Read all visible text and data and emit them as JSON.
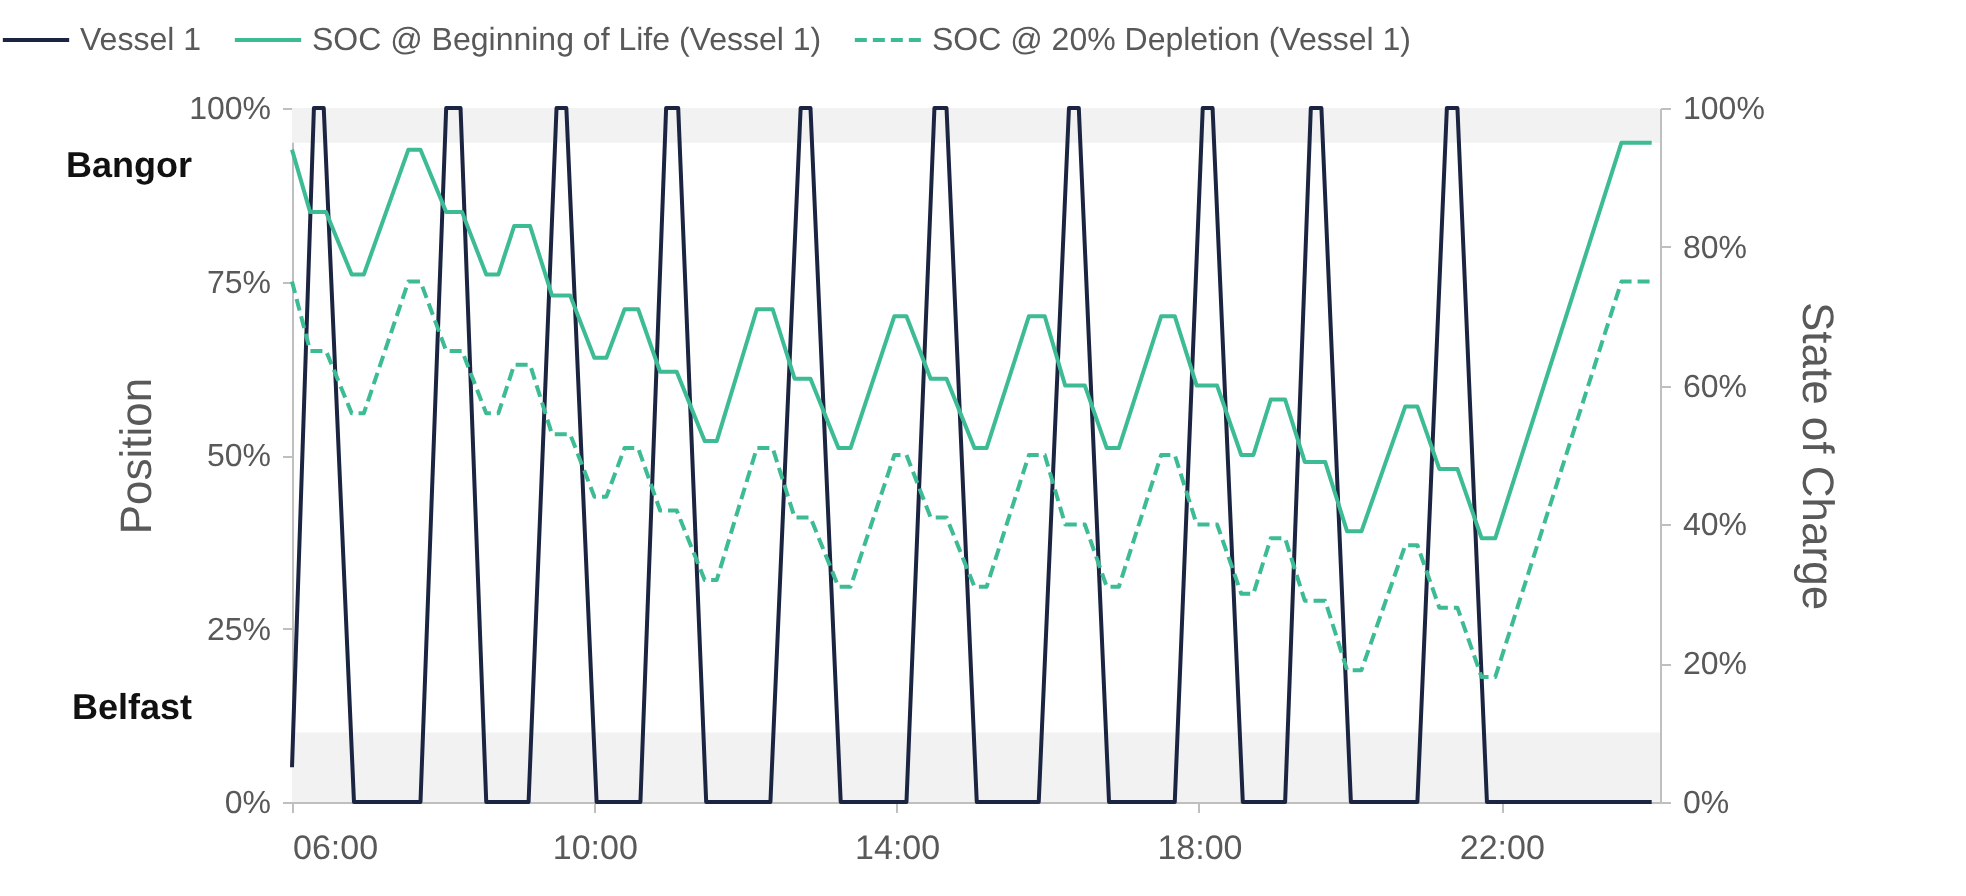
{
  "chart_data": {
    "type": "line",
    "xlabel": null,
    "ylabel": "Position",
    "y2label": "State of Charge",
    "xlim": [
      6,
      24.1
    ],
    "xticks": [
      {
        "value": 6,
        "label": "06:00"
      },
      {
        "value": 10,
        "label": "10:00"
      },
      {
        "value": 14,
        "label": "14:00"
      },
      {
        "value": 18,
        "label": "18:00"
      },
      {
        "value": 22,
        "label": "22:00"
      }
    ],
    "ylim": [
      0,
      100
    ],
    "yticks": [
      {
        "value": 0,
        "label": "0%"
      },
      {
        "value": 25,
        "label": "25%"
      },
      {
        "value": 50,
        "label": "50%"
      },
      {
        "value": 75,
        "label": "75%"
      },
      {
        "value": 100,
        "label": "100%"
      }
    ],
    "y2lim": [
      0,
      100
    ],
    "y2ticks": [
      {
        "value": 0,
        "label": "0%"
      },
      {
        "value": 20,
        "label": "20%"
      },
      {
        "value": 40,
        "label": "40%"
      },
      {
        "value": 60,
        "label": "60%"
      },
      {
        "value": 80,
        "label": "80%"
      },
      {
        "value": 100,
        "label": "100%"
      }
    ],
    "legend": "top",
    "grid": false,
    "bands": [
      {
        "axis": "y",
        "from": 95,
        "to": 100,
        "label": "Bangor",
        "color": "#f2f2f2"
      },
      {
        "axis": "y",
        "from": 0,
        "to": 10,
        "label": "Belfast",
        "color": "#f2f2f2"
      }
    ],
    "series": [
      {
        "name": "Vessel 1",
        "color": "#1b2440",
        "line_style": "solid",
        "axis": "y",
        "x": [
          6.0,
          6.29,
          6.42,
          6.82,
          7.7,
          8.04,
          8.23,
          8.57,
          9.13,
          9.5,
          9.63,
          10.03,
          10.61,
          10.95,
          11.11,
          11.48,
          12.33,
          12.73,
          12.86,
          13.26,
          14.13,
          14.5,
          14.66,
          15.06,
          15.88,
          16.28,
          16.41,
          16.81,
          17.68,
          18.05,
          18.18,
          18.58,
          19.14,
          19.48,
          19.62,
          20.01,
          20.89,
          21.28,
          21.42,
          21.81,
          23.99
        ],
        "values": [
          5,
          100,
          100,
          0,
          0,
          100,
          100,
          0,
          0,
          100,
          100,
          0,
          0,
          100,
          100,
          0,
          0,
          100,
          100,
          0,
          0,
          100,
          100,
          0,
          0,
          100,
          100,
          0,
          0,
          100,
          100,
          0,
          0,
          100,
          100,
          0,
          0,
          100,
          100,
          0,
          0
        ]
      },
      {
        "name": "SOC @ Beginning of Life (Vessel 1)",
        "color": "#3dbb94",
        "line_style": "solid",
        "axis": "y2",
        "x": [
          6.0,
          6.24,
          6.45,
          6.79,
          6.95,
          7.54,
          7.7,
          8.04,
          8.25,
          8.57,
          8.73,
          8.94,
          9.15,
          9.44,
          9.68,
          10.0,
          10.16,
          10.4,
          10.58,
          10.87,
          11.09,
          11.46,
          11.62,
          12.15,
          12.36,
          12.65,
          12.86,
          13.23,
          13.39,
          13.97,
          14.13,
          14.45,
          14.66,
          15.03,
          15.19,
          15.75,
          15.96,
          16.23,
          16.49,
          16.78,
          16.94,
          17.5,
          17.68,
          17.97,
          18.24,
          18.56,
          18.72,
          18.95,
          19.14,
          19.4,
          19.67,
          19.96,
          20.15,
          20.73,
          20.89,
          21.18,
          21.42,
          21.74,
          21.92,
          23.59,
          23.99
        ],
        "values": [
          94,
          85,
          85,
          76,
          76,
          94,
          94,
          85,
          85,
          76,
          76,
          83,
          83,
          73,
          73,
          64,
          64,
          71,
          71,
          62,
          62,
          52,
          52,
          71,
          71,
          61,
          61,
          51,
          51,
          70,
          70,
          61,
          61,
          51,
          51,
          70,
          70,
          60,
          60,
          51,
          51,
          70,
          70,
          60,
          60,
          50,
          50,
          58,
          58,
          49,
          49,
          39,
          39,
          57,
          57,
          48,
          48,
          38,
          38,
          95,
          95
        ]
      },
      {
        "name": "SOC @ 20% Depletion (Vessel 1)",
        "color": "#3dbb94",
        "line_style": "dashed",
        "axis": "y2",
        "x": [
          6.0,
          6.24,
          6.45,
          6.79,
          6.95,
          7.54,
          7.7,
          8.04,
          8.25,
          8.57,
          8.73,
          8.94,
          9.15,
          9.44,
          9.68,
          10.0,
          10.16,
          10.4,
          10.58,
          10.87,
          11.09,
          11.46,
          11.62,
          12.15,
          12.36,
          12.65,
          12.86,
          13.23,
          13.39,
          13.97,
          14.13,
          14.45,
          14.66,
          15.03,
          15.19,
          15.75,
          15.96,
          16.23,
          16.49,
          16.78,
          16.94,
          17.5,
          17.68,
          17.97,
          18.24,
          18.56,
          18.72,
          18.95,
          19.14,
          19.4,
          19.67,
          19.96,
          20.15,
          20.73,
          20.89,
          21.18,
          21.42,
          21.74,
          21.92,
          23.59,
          23.99
        ],
        "values": [
          75,
          65,
          65,
          56,
          56,
          75,
          75,
          65,
          65,
          56,
          56,
          63,
          63,
          53,
          53,
          44,
          44,
          51,
          51,
          42,
          42,
          32,
          32,
          51,
          51,
          41,
          41,
          31,
          31,
          50,
          50,
          41,
          41,
          31,
          31,
          50,
          50,
          40,
          40,
          31,
          31,
          50,
          50,
          40,
          40,
          30,
          30,
          38,
          38,
          29,
          29,
          19,
          19,
          37,
          37,
          28,
          28,
          18,
          18,
          75,
          75
        ]
      }
    ]
  }
}
